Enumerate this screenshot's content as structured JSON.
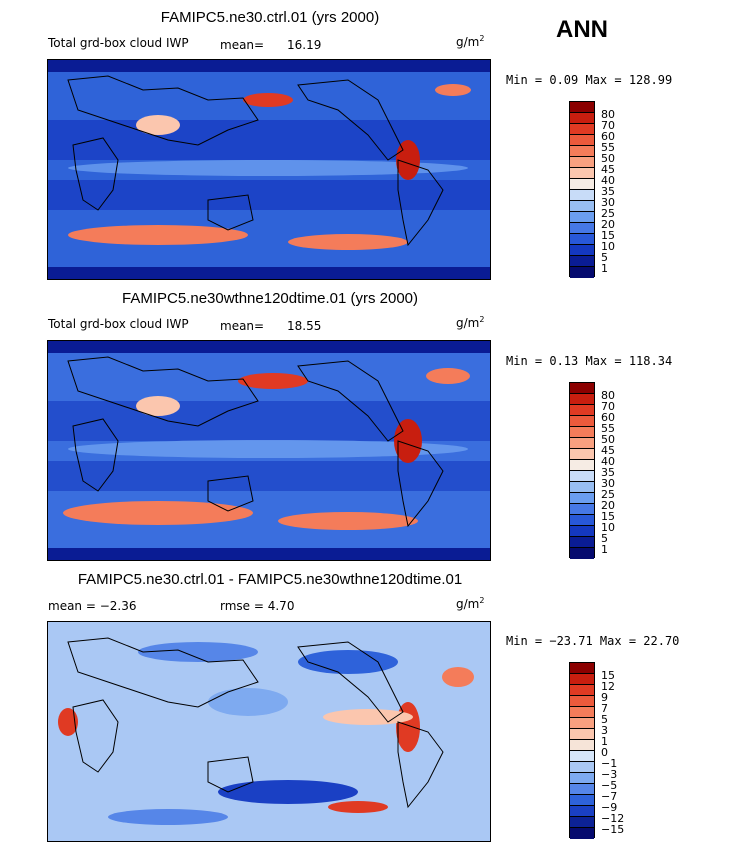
{
  "season": "ANN",
  "units_main": "g/m",
  "units_sup": "2",
  "panels": [
    {
      "title": "FAMIPC5.ne30.ctrl.01 (yrs 2000)",
      "variable": "Total grd-box cloud IWP",
      "mean_label": "mean=",
      "mean_value": "16.19",
      "minmax": "Min =   0.09 Max = 128.99"
    },
    {
      "title": "FAMIPC5.ne30wthne120dtime.01 (yrs 2000)",
      "variable": "Total grd-box cloud IWP",
      "mean_label": "mean=",
      "mean_value": "18.55",
      "minmax": "Min =   0.13 Max = 118.34"
    },
    {
      "title": "FAMIPC5.ne30.ctrl.01 - FAMIPC5.ne30wthne120dtime.01",
      "mean_text": "mean =  −2.36",
      "rmse_text": "rmse =   4.70",
      "minmax": "Min = −23.71 Max =  22.70"
    }
  ],
  "colorbar_levels": [
    "80",
    "70",
    "60",
    "55",
    "50",
    "45",
    "40",
    "35",
    "30",
    "25",
    "20",
    "15",
    "10",
    "5",
    "1"
  ],
  "colorbar_colors": [
    "#8b0000",
    "#c81e0f",
    "#e03a23",
    "#ec5a3c",
    "#f47c5a",
    "#f8a080",
    "#fbc6ae",
    "#f6ece4",
    "#c8dcf8",
    "#98bef2",
    "#6b9ef0",
    "#4678e6",
    "#2858d8",
    "#1438c0",
    "#0a1c94",
    "#050a6e"
  ],
  "diff_levels": [
    "15",
    "12",
    "9",
    "7",
    "5",
    "3",
    "1",
    "0",
    "−1",
    "−3",
    "−5",
    "−7",
    "−9",
    "−12",
    "−15"
  ],
  "diff_colors": [
    "#8b0000",
    "#c81e0f",
    "#e03a23",
    "#ec5a3c",
    "#f47c5a",
    "#f8a080",
    "#fbc6ae",
    "#f6e4d8",
    "#d6e6fa",
    "#aac8f4",
    "#7eaaf0",
    "#5686e8",
    "#2e62da",
    "#1a40c4",
    "#0c2296",
    "#050a6e"
  ]
}
